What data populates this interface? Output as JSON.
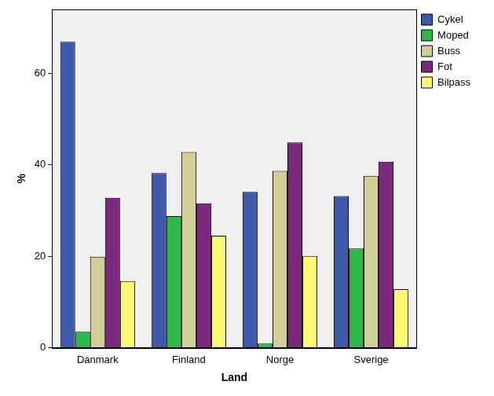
{
  "chart_data": {
    "type": "bar",
    "x_label": "Land",
    "y_label": "%",
    "categories": [
      "Danmark",
      "Finland",
      "Norge",
      "Sverige"
    ],
    "series": [
      {
        "name": "Cykel",
        "color": "#3e58ac",
        "values": [
          66.9,
          38.2,
          34.1,
          33.2
        ]
      },
      {
        "name": "Moped",
        "color": "#2eb848",
        "values": [
          3.5,
          28.8,
          0.9,
          21.7
        ]
      },
      {
        "name": "Buss",
        "color": "#d3ce97",
        "values": [
          19.9,
          42.8,
          38.7,
          37.6
        ]
      },
      {
        "name": "Fot",
        "color": "#7c287d",
        "values": [
          32.8,
          31.6,
          44.9,
          40.7
        ]
      },
      {
        "name": "Bilpass",
        "color": "#fbf873",
        "values": [
          14.6,
          24.5,
          20.1,
          12.8
        ]
      }
    ],
    "ylim": [
      0,
      74
    ],
    "yticks": [
      0,
      20,
      40,
      60
    ],
    "grid": false,
    "legend": "top-right"
  }
}
